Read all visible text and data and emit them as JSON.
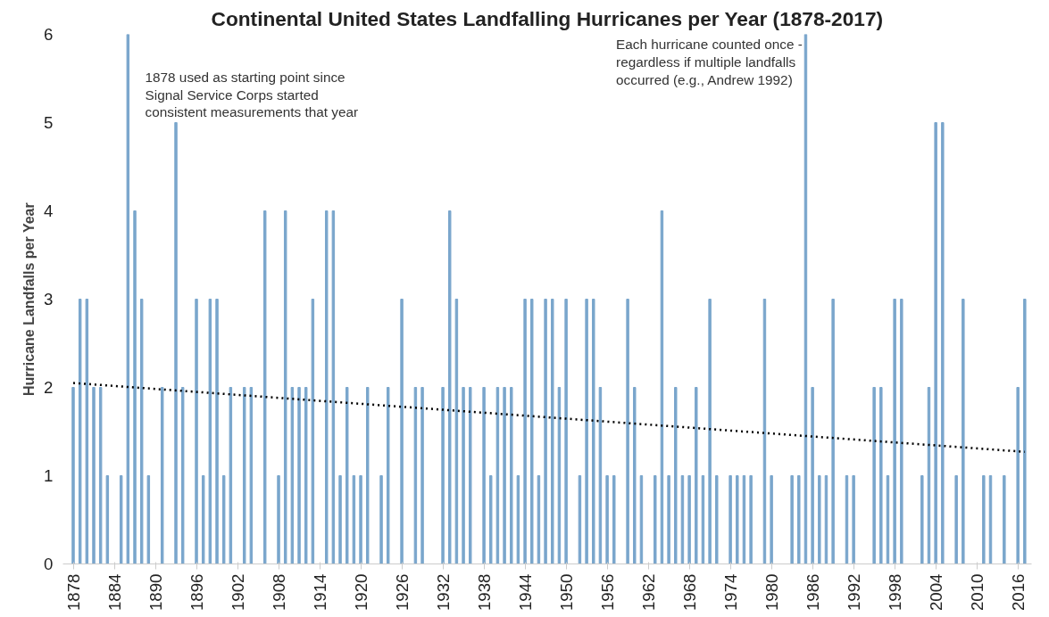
{
  "chart_data": {
    "type": "bar",
    "title": "Continental United States Landfalling Hurricanes per Year (1878-2017)",
    "ylabel": "Hurricane Landfalls per Year",
    "annotations": [
      "1878 used as starting point since\nSignal Service Corps started\nconsistent measurements that year",
      "Each hurricane counted once -\nregardless if  multiple landfalls\noccurred  (e.g., Andrew 1992)"
    ],
    "x": [
      1878,
      1879,
      1880,
      1881,
      1882,
      1883,
      1884,
      1885,
      1886,
      1887,
      1888,
      1889,
      1890,
      1891,
      1892,
      1893,
      1894,
      1895,
      1896,
      1897,
      1898,
      1899,
      1900,
      1901,
      1902,
      1903,
      1904,
      1905,
      1906,
      1907,
      1908,
      1909,
      1910,
      1911,
      1912,
      1913,
      1914,
      1915,
      1916,
      1917,
      1918,
      1919,
      1920,
      1921,
      1922,
      1923,
      1924,
      1925,
      1926,
      1927,
      1928,
      1929,
      1930,
      1931,
      1932,
      1933,
      1934,
      1935,
      1936,
      1937,
      1938,
      1939,
      1940,
      1941,
      1942,
      1943,
      1944,
      1945,
      1946,
      1947,
      1948,
      1949,
      1950,
      1951,
      1952,
      1953,
      1954,
      1955,
      1956,
      1957,
      1958,
      1959,
      1960,
      1961,
      1962,
      1963,
      1964,
      1965,
      1966,
      1967,
      1968,
      1969,
      1970,
      1971,
      1972,
      1973,
      1974,
      1975,
      1976,
      1977,
      1978,
      1979,
      1980,
      1981,
      1982,
      1983,
      1984,
      1985,
      1986,
      1987,
      1988,
      1989,
      1990,
      1991,
      1992,
      1993,
      1994,
      1995,
      1996,
      1997,
      1998,
      1999,
      2000,
      2001,
      2002,
      2003,
      2004,
      2005,
      2006,
      2007,
      2008,
      2009,
      2010,
      2011,
      2012,
      2013,
      2014,
      2015,
      2016,
      2017
    ],
    "series": [
      {
        "color": "#7aa6cc",
        "values": [
          2,
          3,
          3,
          2,
          2,
          1,
          0,
          1,
          6,
          4,
          3,
          1,
          0,
          2,
          0,
          5,
          2,
          0,
          3,
          1,
          3,
          3,
          1,
          2,
          0,
          2,
          2,
          0,
          4,
          0,
          1,
          4,
          2,
          2,
          2,
          3,
          0,
          4,
          4,
          1,
          2,
          1,
          1,
          2,
          0,
          1,
          2,
          0,
          3,
          0,
          2,
          2,
          0,
          0,
          2,
          4,
          3,
          2,
          2,
          0,
          2,
          1,
          2,
          2,
          2,
          1,
          3,
          3,
          1,
          3,
          3,
          2,
          3,
          0,
          1,
          3,
          3,
          2,
          1,
          1,
          0,
          3,
          2,
          1,
          0,
          1,
          4,
          1,
          2,
          1,
          1,
          2,
          1,
          3,
          1,
          0,
          1,
          1,
          1,
          1,
          0,
          3,
          1,
          0,
          0,
          1,
          1,
          6,
          2,
          1,
          1,
          3,
          0,
          1,
          1,
          0,
          0,
          2,
          2,
          1,
          3,
          3,
          0,
          0,
          1,
          2,
          5,
          5,
          0,
          1,
          3,
          0,
          0,
          1,
          1,
          0,
          1,
          0,
          2,
          3
        ]
      },
      {
        "type": "line",
        "color": "#000000",
        "line_style": "dotted",
        "x": [
          1878,
          2017
        ],
        "values": [
          2.05,
          1.27
        ]
      }
    ],
    "xlim": [
      1876.5,
      2018
    ],
    "xticks": [
      1878,
      1884,
      1890,
      1896,
      1902,
      1908,
      1914,
      1920,
      1926,
      1932,
      1938,
      1944,
      1950,
      1956,
      1962,
      1968,
      1974,
      1980,
      1986,
      1992,
      1998,
      2004,
      2010,
      2016
    ],
    "ylim": [
      0,
      6
    ],
    "yticks": [
      0,
      1,
      2,
      3,
      4,
      5,
      6
    ],
    "grid": false
  }
}
